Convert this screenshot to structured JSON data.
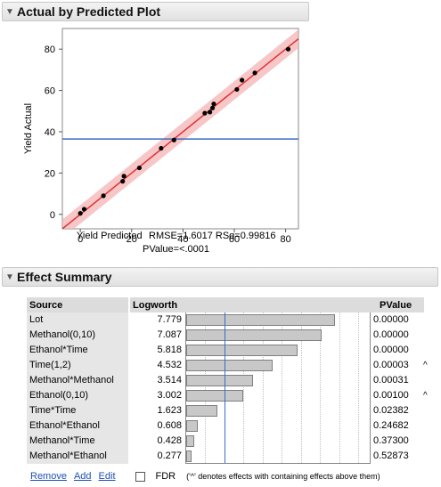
{
  "section1": {
    "title": "Actual by Predicted Plot",
    "disclosure_icon": "triangle-down"
  },
  "chart_data": {
    "type": "scatter",
    "ylabel": "Yield Actual",
    "xlabel": "Yield Predicted",
    "stats_text": "RMSE=1.6017 RSq=0.99816",
    "pvalue_text": "PValue=<.0001",
    "xlim": [
      -7,
      85
    ],
    "ylim": [
      -7,
      90
    ],
    "x_ticks": [
      0,
      20,
      40,
      60,
      80
    ],
    "y_ticks": [
      0,
      20,
      40,
      60,
      80
    ],
    "mean_y": 36.5,
    "points": [
      {
        "x": 0,
        "y": 0.5
      },
      {
        "x": 1.5,
        "y": 2.5
      },
      {
        "x": 9,
        "y": 9
      },
      {
        "x": 16.5,
        "y": 16
      },
      {
        "x": 17,
        "y": 18.5
      },
      {
        "x": 23,
        "y": 22.5
      },
      {
        "x": 31.5,
        "y": 32
      },
      {
        "x": 36.5,
        "y": 36
      },
      {
        "x": 48.5,
        "y": 49
      },
      {
        "x": 50.5,
        "y": 49.5
      },
      {
        "x": 51.5,
        "y": 51.5
      },
      {
        "x": 52,
        "y": 53.5
      },
      {
        "x": 61,
        "y": 60.5
      },
      {
        "x": 63,
        "y": 65
      },
      {
        "x": 68,
        "y": 68.5
      },
      {
        "x": 81,
        "y": 80
      }
    ],
    "fit_line": {
      "color": "#e03030",
      "band_color": "#f4b4b4"
    },
    "mean_line_color": "#3a6bc4"
  },
  "section2": {
    "title": "Effect Summary",
    "disclosure_icon": "triangle-down",
    "columns": {
      "source": "Source",
      "logworth": "Logworth",
      "pvalue": "PValue"
    },
    "threshold_logworth": 2,
    "max_logworth": 9.7,
    "rows": [
      {
        "source": "Lot",
        "logworth": "7.779",
        "value": 7.779,
        "pvalue": "0.00000",
        "caret": ""
      },
      {
        "source": "Methanol(0,10)",
        "logworth": "7.087",
        "value": 7.087,
        "pvalue": "0.00000",
        "caret": ""
      },
      {
        "source": "Ethanol*Time",
        "logworth": "5.818",
        "value": 5.818,
        "pvalue": "0.00000",
        "caret": ""
      },
      {
        "source": "Time(1,2)",
        "logworth": "4.532",
        "value": 4.532,
        "pvalue": "0.00003",
        "caret": "^"
      },
      {
        "source": "Methanol*Methanol",
        "logworth": "3.514",
        "value": 3.514,
        "pvalue": "0.00031",
        "caret": ""
      },
      {
        "source": "Ethanol(0,10)",
        "logworth": "3.002",
        "value": 3.002,
        "pvalue": "0.00100",
        "caret": "^"
      },
      {
        "source": "Time*Time",
        "logworth": "1.623",
        "value": 1.623,
        "pvalue": "0.02382",
        "caret": ""
      },
      {
        "source": "Ethanol*Ethanol",
        "logworth": "0.608",
        "value": 0.608,
        "pvalue": "0.24682",
        "caret": ""
      },
      {
        "source": "Methanol*Time",
        "logworth": "0.428",
        "value": 0.428,
        "pvalue": "0.37300",
        "caret": ""
      },
      {
        "source": "Methanol*Ethanol",
        "logworth": "0.277",
        "value": 0.277,
        "pvalue": "0.52873",
        "caret": ""
      }
    ]
  },
  "footer": {
    "remove": "Remove",
    "add": "Add",
    "edit": "Edit",
    "fdr": "FDR",
    "note": "('^' denotes effects with containing effects above them)"
  }
}
